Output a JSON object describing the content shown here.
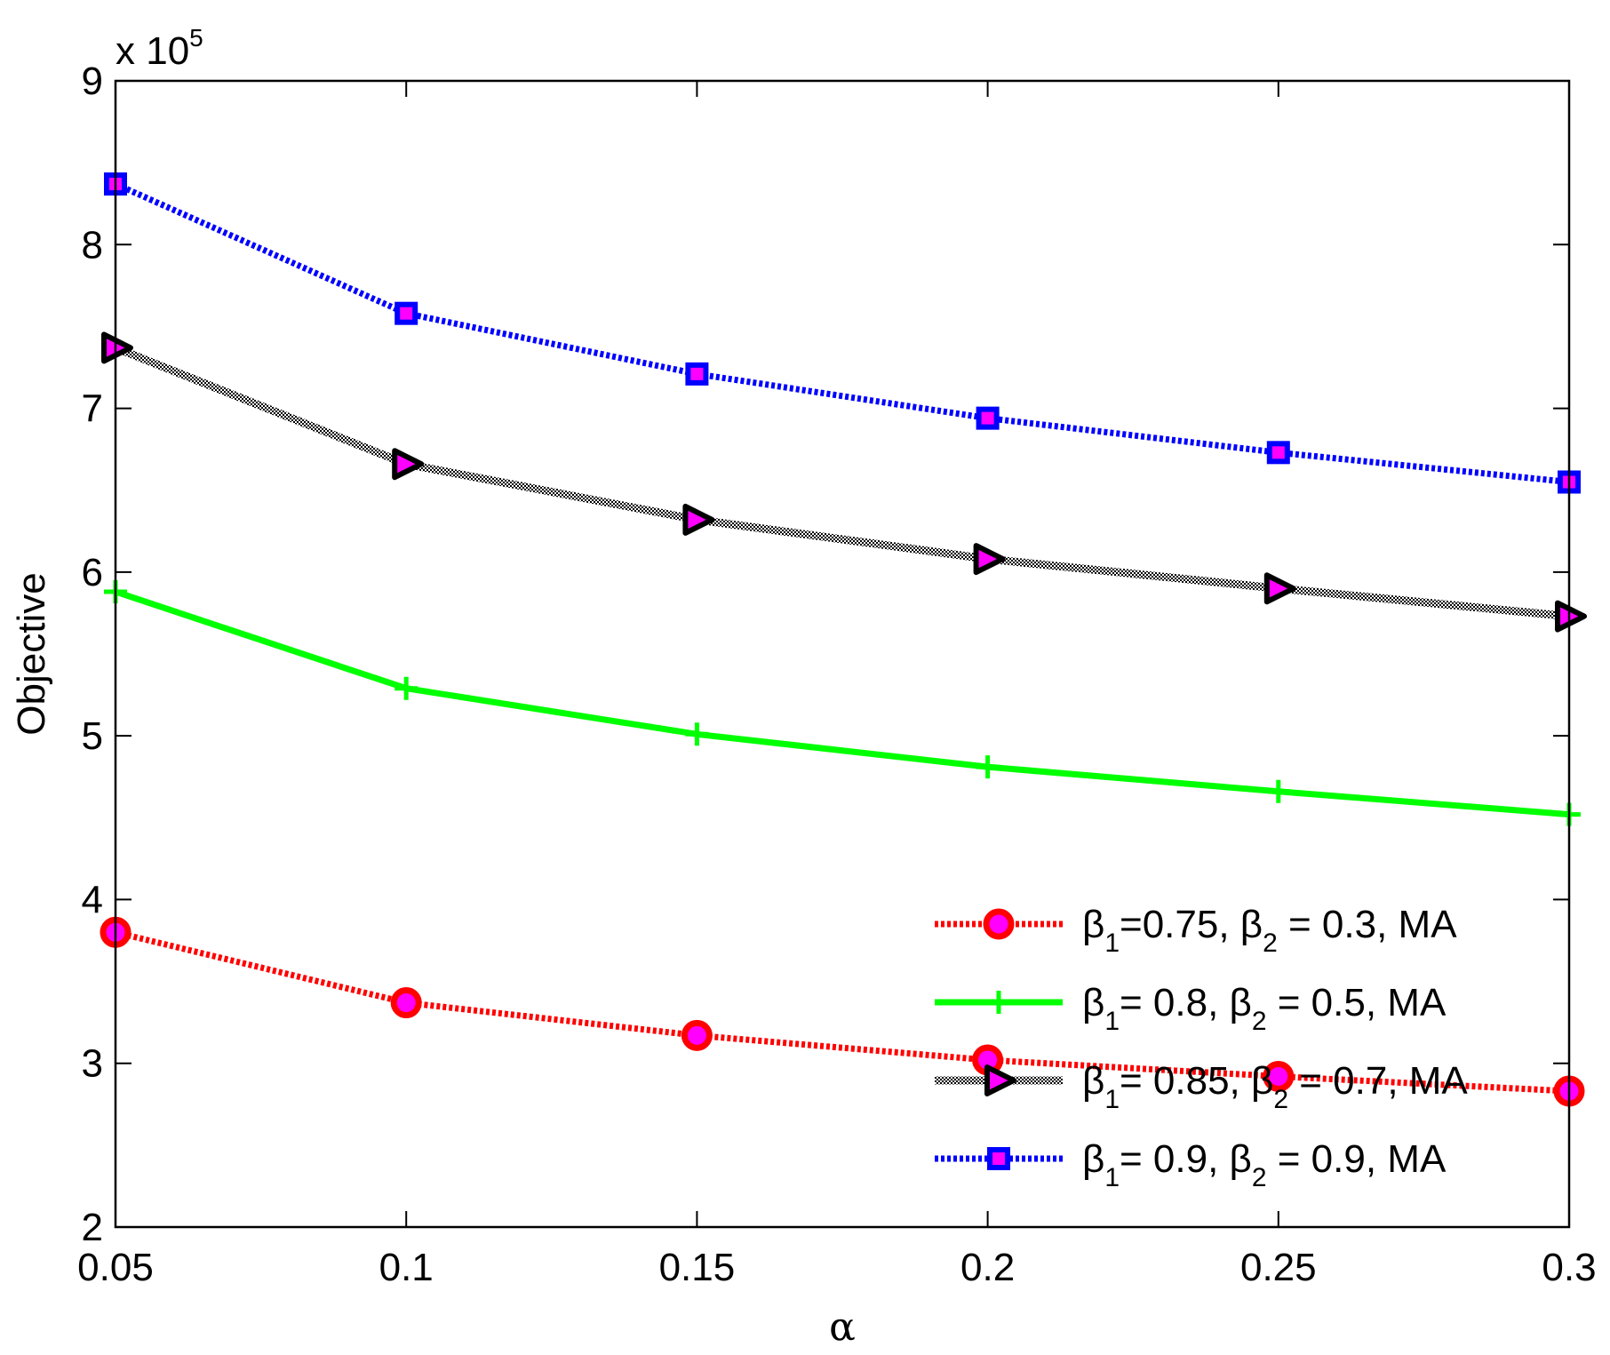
{
  "chart_data": {
    "type": "line",
    "x": [
      0.05,
      0.1,
      0.15,
      0.2,
      0.25,
      0.3
    ],
    "x_tick_labels": [
      "0.05",
      "0.1",
      "0.15",
      "0.2",
      "0.25",
      "0.3"
    ],
    "y_ticks": [
      2,
      3,
      4,
      5,
      6,
      7,
      8,
      9
    ],
    "y_tick_labels": [
      "2",
      "3",
      "4",
      "5",
      "6",
      "7",
      "8",
      "9"
    ],
    "y_multiplier": "x 10",
    "y_multiplier_exponent": "5",
    "xlabel": "α",
    "ylabel": "Objective",
    "xlim": [
      0.05,
      0.3
    ],
    "ylim": [
      2,
      9
    ],
    "grid": false,
    "legend_position": "bottom-right",
    "series": [
      {
        "name": "β1=0.75, β2 = 0.3, MA",
        "legend_parts": [
          "β",
          "1",
          "=0.75, β",
          "2",
          " = 0.3, MA"
        ],
        "values": [
          3.8,
          3.37,
          3.17,
          3.02,
          2.92,
          2.83
        ],
        "line_color": "#ff0000",
        "marker": "circle",
        "marker_edge": "#ff0000",
        "marker_fill": "#ff00ff",
        "line_style": "dotted"
      },
      {
        "name": "β1= 0.8, β2 = 0.5, MA",
        "legend_parts": [
          "β",
          "1",
          "= 0.8, β",
          "2",
          " = 0.5, MA"
        ],
        "values": [
          5.88,
          5.29,
          5.01,
          4.81,
          4.66,
          4.52
        ],
        "line_color": "#00ff00",
        "marker": "plus",
        "marker_edge": "#00ff00",
        "marker_fill": "#00ff00",
        "line_style": "solid"
      },
      {
        "name": "β1= 0.85, β2 = 0.7, MA",
        "legend_parts": [
          "β",
          "1",
          "= 0.85, β",
          "2",
          " = 0.7, MA"
        ],
        "values": [
          7.37,
          6.66,
          6.32,
          6.08,
          5.9,
          5.73
        ],
        "line_color": "#000000",
        "marker": "triangle-right",
        "marker_edge": "#000000",
        "marker_fill": "#ff00ff",
        "line_style": "hatched"
      },
      {
        "name": "β1= 0.9, β2 = 0.9, MA",
        "legend_parts": [
          "β",
          "1",
          "= 0.9, β",
          "2",
          " = 0.9, MA"
        ],
        "values": [
          8.37,
          7.58,
          7.21,
          6.94,
          6.73,
          6.55
        ],
        "line_color": "#0000ff",
        "marker": "square",
        "marker_edge": "#0000ff",
        "marker_fill": "#ff00ff",
        "line_style": "dotted"
      }
    ]
  }
}
